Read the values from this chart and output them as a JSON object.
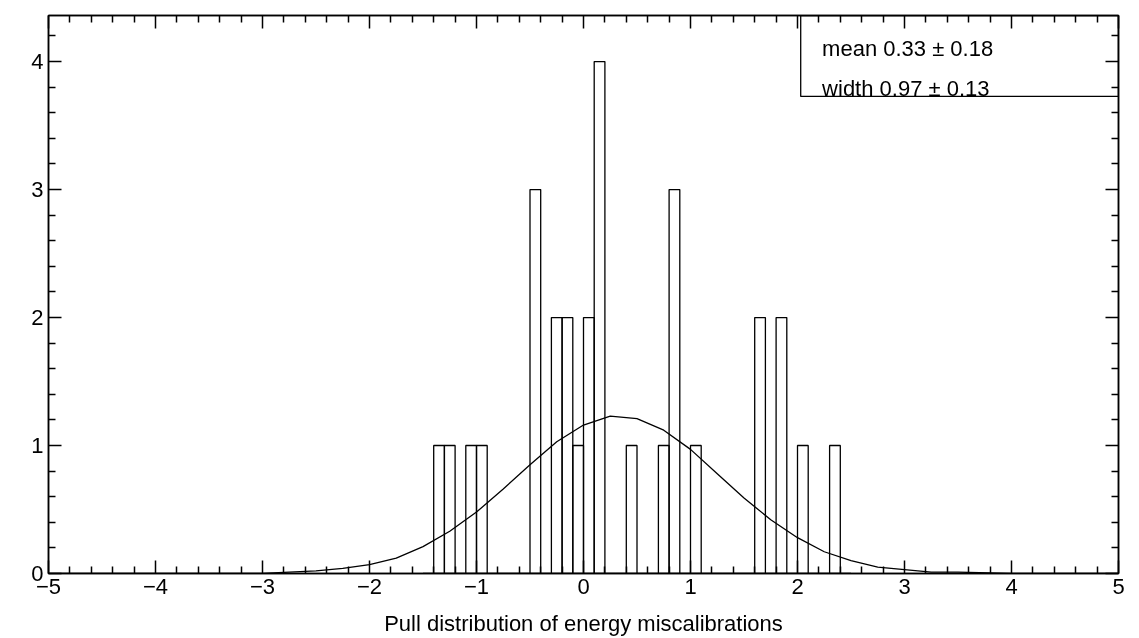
{
  "chart_data": {
    "type": "histogram",
    "xlabel": "Pull distribution of energy miscalibrations",
    "annotations": [
      "mean  0.33 ± 0.18",
      "width  0.97 ± 0.13"
    ],
    "series": [
      {
        "color": "#000000",
        "bins": [
          -1.5,
          -1.4,
          -1.3,
          -1.2,
          -1.1,
          -1.0,
          -0.9,
          -0.8,
          -0.7,
          -0.6,
          -0.5,
          -0.4,
          -0.3,
          -0.2,
          -0.1,
          0.0,
          0.1,
          0.2,
          0.3,
          0.4,
          0.5,
          0.6,
          0.7,
          0.8,
          0.9,
          1.0,
          1.1,
          1.2,
          1.3,
          1.4,
          1.5,
          1.6,
          1.7,
          1.8,
          1.9,
          2.0,
          2.1,
          2.2,
          2.3,
          2.4,
          2.5
        ],
        "values": [
          0,
          1,
          1,
          0,
          1,
          1,
          0,
          0,
          0,
          0,
          3,
          0,
          2,
          2,
          1,
          2,
          4,
          0,
          0,
          1,
          0,
          0,
          1,
          3,
          0,
          1,
          0,
          0,
          0,
          0,
          0,
          2,
          0,
          2,
          0,
          1,
          0,
          0,
          1,
          0
        ]
      },
      {
        "type": "line",
        "color": "#000000",
        "x": [
          -5,
          -4.5,
          -4,
          -3.5,
          -3,
          -2.75,
          -2.5,
          -2.25,
          -2,
          -1.75,
          -1.5,
          -1.25,
          -1,
          -0.75,
          -0.5,
          -0.25,
          0,
          0.25,
          0.5,
          0.75,
          1,
          1.25,
          1.5,
          1.75,
          2,
          2.25,
          2.5,
          2.75,
          3,
          3.25,
          3.5,
          4,
          4.5,
          5
        ],
        "values": [
          0,
          0,
          0,
          0,
          0,
          0.01,
          0.02,
          0.04,
          0.07,
          0.12,
          0.21,
          0.33,
          0.48,
          0.66,
          0.85,
          1.03,
          1.16,
          1.23,
          1.21,
          1.12,
          0.97,
          0.78,
          0.59,
          0.42,
          0.28,
          0.17,
          0.1,
          0.05,
          0.03,
          0.01,
          0.01,
          0,
          0,
          0
        ]
      }
    ],
    "xlim": [
      -5,
      5
    ],
    "ylim": [
      0,
      4.36
    ],
    "xticks": [
      {
        "value": -5,
        "label": "−5"
      },
      {
        "value": -4.8,
        "label": null
      },
      {
        "value": -4.6,
        "label": null
      },
      {
        "value": -4.4,
        "label": null
      },
      {
        "value": -4.2,
        "label": null
      },
      {
        "value": -4,
        "label": "−4"
      },
      {
        "value": -3.8,
        "label": null
      },
      {
        "value": -3.6,
        "label": null
      },
      {
        "value": -3.4,
        "label": null
      },
      {
        "value": -3.2,
        "label": null
      },
      {
        "value": -3,
        "label": "−3"
      },
      {
        "value": -2.8,
        "label": null
      },
      {
        "value": -2.6,
        "label": null
      },
      {
        "value": -2.4,
        "label": null
      },
      {
        "value": -2.2,
        "label": null
      },
      {
        "value": -2,
        "label": "−2"
      },
      {
        "value": -1.8,
        "label": null
      },
      {
        "value": -1.6,
        "label": null
      },
      {
        "value": -1.4,
        "label": null
      },
      {
        "value": -1.2,
        "label": null
      },
      {
        "value": -1,
        "label": "−1"
      },
      {
        "value": -0.8,
        "label": null
      },
      {
        "value": -0.6,
        "label": null
      },
      {
        "value": -0.4,
        "label": null
      },
      {
        "value": -0.2,
        "label": null
      },
      0,
      {
        "value": 0.2,
        "label": null
      },
      {
        "value": 0.4,
        "label": null
      },
      {
        "value": 0.6,
        "label": null
      },
      {
        "value": 0.8,
        "label": null
      },
      1,
      {
        "value": 1.2,
        "label": null
      },
      {
        "value": 1.4,
        "label": null
      },
      {
        "value": 1.6,
        "label": null
      },
      {
        "value": 1.8,
        "label": null
      },
      2,
      {
        "value": 2.2,
        "label": null
      },
      {
        "value": 2.4,
        "label": null
      },
      {
        "value": 2.6,
        "label": null
      },
      {
        "value": 2.8,
        "label": null
      },
      3,
      {
        "value": 3.2,
        "label": null
      },
      {
        "value": 3.4,
        "label": null
      },
      {
        "value": 3.6,
        "label": null
      },
      {
        "value": 3.8,
        "label": null
      },
      4,
      {
        "value": 4.2,
        "label": null
      },
      {
        "value": 4.4,
        "label": null
      },
      {
        "value": 4.6,
        "label": null
      },
      {
        "value": 4.8,
        "label": null
      },
      5
    ],
    "yticks": [
      0,
      {
        "value": 0.2,
        "label": null
      },
      {
        "value": 0.4,
        "label": null
      },
      {
        "value": 0.6,
        "label": null
      },
      {
        "value": 0.8,
        "label": null
      },
      1,
      {
        "value": 1.2,
        "label": null
      },
      {
        "value": 1.4,
        "label": null
      },
      {
        "value": 1.6,
        "label": null
      },
      {
        "value": 1.8,
        "label": null
      },
      2,
      {
        "value": 2.2,
        "label": null
      },
      {
        "value": 2.4,
        "label": null
      },
      {
        "value": 2.6,
        "label": null
      },
      {
        "value": 2.8,
        "label": null
      },
      3,
      {
        "value": 3.2,
        "label": null
      },
      {
        "value": 3.4,
        "label": null
      },
      {
        "value": 3.6,
        "label": null
      },
      {
        "value": 3.8,
        "label": null
      },
      4,
      {
        "value": 4.2,
        "label": null
      }
    ],
    "grid": false,
    "line_style": "solid",
    "marker": "none"
  }
}
